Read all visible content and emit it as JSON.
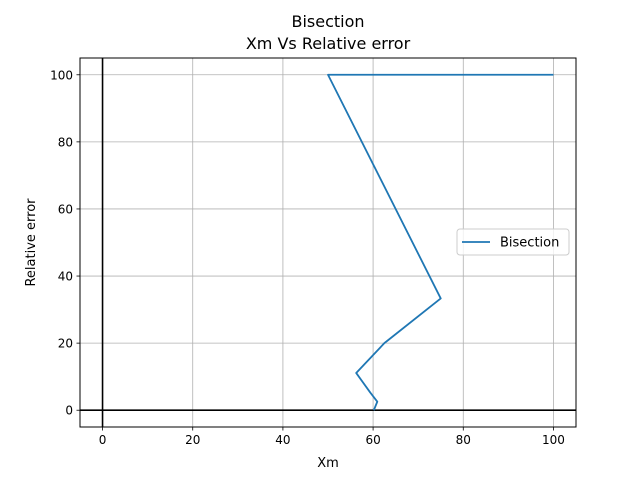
{
  "chart_data": {
    "type": "line",
    "title": "Bisection",
    "subtitle": "Xm Vs Relative error",
    "xlabel": "Xm",
    "ylabel": "Relative error",
    "xlim": [
      -5,
      105
    ],
    "ylim": [
      -5,
      105
    ],
    "xticks": [
      0,
      20,
      40,
      60,
      80,
      100
    ],
    "yticks": [
      0,
      20,
      40,
      60,
      80,
      100
    ],
    "grid": true,
    "legend_position": "center-right",
    "series": [
      {
        "name": "Bisection",
        "color": "#1f77b4",
        "x": [
          100,
          50,
          75,
          62.5,
          56.25,
          59.375,
          60.9375,
          60.15625
        ],
        "y": [
          100,
          100,
          33.33,
          20,
          11.11,
          5.26,
          2.56,
          0
        ]
      }
    ],
    "reference_lines": {
      "x": 0,
      "y": 0,
      "color": "#000000"
    }
  }
}
